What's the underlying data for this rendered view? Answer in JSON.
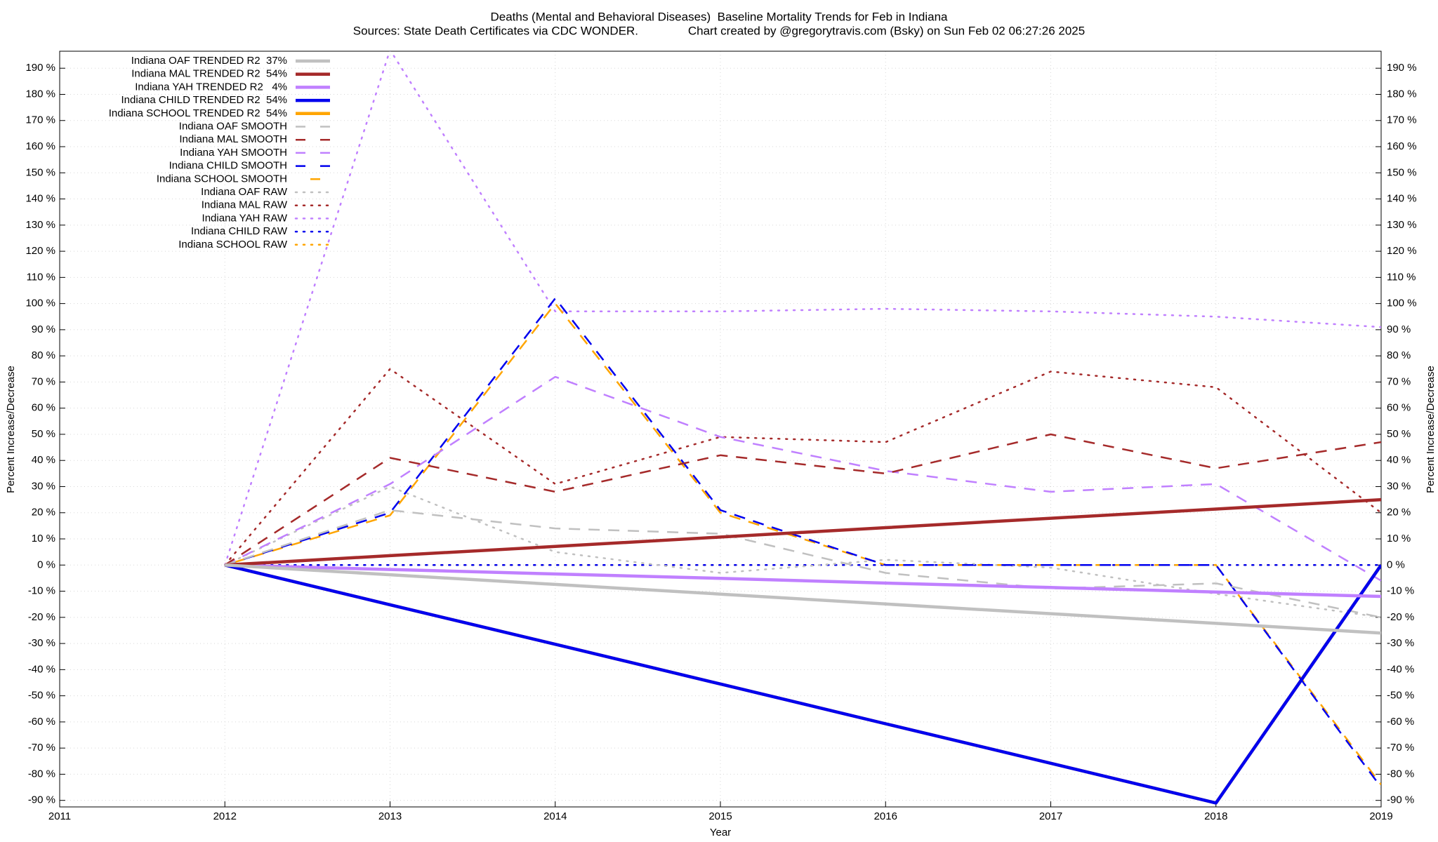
{
  "chart_data": {
    "type": "line",
    "title": "Deaths (Mental and Behavioral Diseases)  Baseline Mortality Trends for Feb in Indiana",
    "subtitle": "Sources: State Death Certificates via CDC WONDER.               Chart created by @gregorytravis.com (Bsky) on Sun Feb 02 06:27:26 2025",
    "x_label": "Year",
    "y_label": "Percent Increase/Decrease",
    "y2_label": "Percent Increase/Decrease",
    "x": [
      2012,
      2013,
      2014,
      2015,
      2016,
      2017,
      2018,
      2019
    ],
    "xlim": [
      2011,
      2019
    ],
    "xticks": [
      2011,
      2012,
      2013,
      2014,
      2015,
      2016,
      2017,
      2018,
      2019
    ],
    "ylim": [
      -92.5,
      196.5
    ],
    "yticks": [
      {
        "value": -90,
        "label": "-90 %"
      },
      {
        "value": -80,
        "label": "-80 %"
      },
      {
        "value": -70,
        "label": "-70 %"
      },
      {
        "value": -60,
        "label": "-60 %"
      },
      {
        "value": -50,
        "label": "-50 %"
      },
      {
        "value": -40,
        "label": "-40 %"
      },
      {
        "value": -30,
        "label": "-30 %"
      },
      {
        "value": -20,
        "label": "-20 %"
      },
      {
        "value": -10,
        "label": "-10 %"
      },
      {
        "value": 0,
        "label": "0 %"
      },
      {
        "value": 10,
        "label": "10 %"
      },
      {
        "value": 20,
        "label": "20 %"
      },
      {
        "value": 30,
        "label": "30 %"
      },
      {
        "value": 40,
        "label": "40 %"
      },
      {
        "value": 50,
        "label": "50 %"
      },
      {
        "value": 60,
        "label": "60 %"
      },
      {
        "value": 70,
        "label": "70 %"
      },
      {
        "value": 80,
        "label": "80 %"
      },
      {
        "value": 90,
        "label": "90 %"
      },
      {
        "value": 100,
        "label": "100 %"
      },
      {
        "value": 110,
        "label": "110 %"
      },
      {
        "value": 120,
        "label": "120 %"
      },
      {
        "value": 130,
        "label": "130 %"
      },
      {
        "value": 140,
        "label": "140 %"
      },
      {
        "value": 150,
        "label": "150 %"
      },
      {
        "value": 160,
        "label": "160 %"
      },
      {
        "value": 170,
        "label": "170 %"
      },
      {
        "value": 180,
        "label": "180 %"
      },
      {
        "value": 190,
        "label": "190 %"
      }
    ],
    "grid": true,
    "legend": "top-left",
    "series": [
      {
        "name": "Indiana OAF TRENDED R2  37%",
        "color": "#c0c0c0",
        "style": "solid",
        "values": [
          0,
          -3.7,
          -7.4,
          -11.1,
          -14.9,
          -18.6,
          -22.3,
          -26
        ]
      },
      {
        "name": "Indiana MAL TRENDED R2  54%",
        "color": "#a52a2a",
        "style": "solid",
        "values": [
          0,
          3.6,
          7.1,
          10.7,
          14.3,
          17.9,
          21.4,
          25
        ]
      },
      {
        "name": "Indiana YAH TRENDED R2   4%",
        "color": "#c080ff",
        "style": "solid",
        "values": [
          0,
          -1.7,
          -3.4,
          -5.1,
          -6.9,
          -8.6,
          -10.3,
          -12
        ]
      },
      {
        "name": "Indiana CHILD TRENDED R2  54%",
        "color": "#0000ee",
        "style": "solid",
        "values": [
          0,
          -15.2,
          -30.3,
          -45.5,
          -60.7,
          -75.8,
          -91,
          0
        ]
      },
      {
        "name": "Indiana SCHOOL TRENDED R2  54%",
        "color": "#ffa500",
        "style": "solid",
        "values": [
          0,
          -15.2,
          -30.3,
          -45.5,
          -60.7,
          -75.8,
          -91,
          0
        ]
      },
      {
        "name": "Indiana OAF SMOOTH",
        "color": "#c0c0c0",
        "style": "dashed",
        "values": [
          0,
          21,
          14,
          12,
          -3,
          -9,
          -7,
          -20
        ]
      },
      {
        "name": "Indiana MAL SMOOTH",
        "color": "#a52a2a",
        "style": "dashed",
        "values": [
          0,
          41,
          28,
          42,
          35,
          50,
          37,
          47
        ]
      },
      {
        "name": "Indiana YAH SMOOTH",
        "color": "#c080ff",
        "style": "dashed",
        "values": [
          0,
          31,
          72,
          49,
          36,
          28,
          31,
          -6
        ]
      },
      {
        "name": "Indiana CHILD SMOOTH",
        "color": "#0000ee",
        "style": "dashed",
        "values": [
          0,
          20,
          102,
          21,
          0,
          0,
          0,
          -85
        ]
      },
      {
        "name": "Indiana SCHOOL SMOOTH",
        "color": "#ffa500",
        "style": "dashed",
        "values": [
          0,
          19,
          100,
          20,
          0,
          0,
          0,
          -84
        ]
      },
      {
        "name": "Indiana OAF RAW",
        "color": "#c0c0c0",
        "style": "dotted",
        "values": [
          0,
          30,
          5,
          -3,
          2,
          -1,
          -11,
          -20
        ]
      },
      {
        "name": "Indiana MAL RAW",
        "color": "#a52a2a",
        "style": "dotted",
        "values": [
          0,
          75,
          31,
          49,
          47,
          74,
          68,
          20
        ]
      },
      {
        "name": "Indiana YAH RAW",
        "color": "#c080ff",
        "style": "dotted",
        "values": [
          0,
          197,
          97,
          97,
          98,
          97,
          95,
          91
        ]
      },
      {
        "name": "Indiana CHILD RAW",
        "color": "#0000ee",
        "style": "dotted",
        "values": [
          0,
          0,
          0,
          0,
          0,
          0,
          0,
          0
        ]
      },
      {
        "name": "Indiana SCHOOL RAW",
        "color": "#ffa500",
        "style": "dotted",
        "values": [
          0,
          0,
          0,
          0,
          0,
          0,
          0,
          0
        ]
      }
    ]
  }
}
